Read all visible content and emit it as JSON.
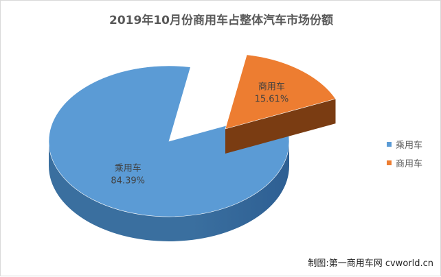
{
  "chart_data": {
    "type": "pie",
    "title": "2019年10月份商用车占整体汽车市场份额",
    "slices": [
      {
        "name": "乘用车",
        "value": 84.39,
        "label": "84.39%",
        "color": "#5b9bd5",
        "dark": "#2e5f93",
        "side_color": "#3a6f9f"
      },
      {
        "name": "商用车",
        "value": 15.61,
        "label": "15.61%",
        "color": "#ed7d31",
        "dark": "#5a2f10",
        "side_color": "#7a3c12"
      }
    ],
    "legend_position": "right",
    "three_d": true,
    "exploded_slice": "商用车"
  },
  "credit": "制图:第一商用车网 cvworld.cn"
}
